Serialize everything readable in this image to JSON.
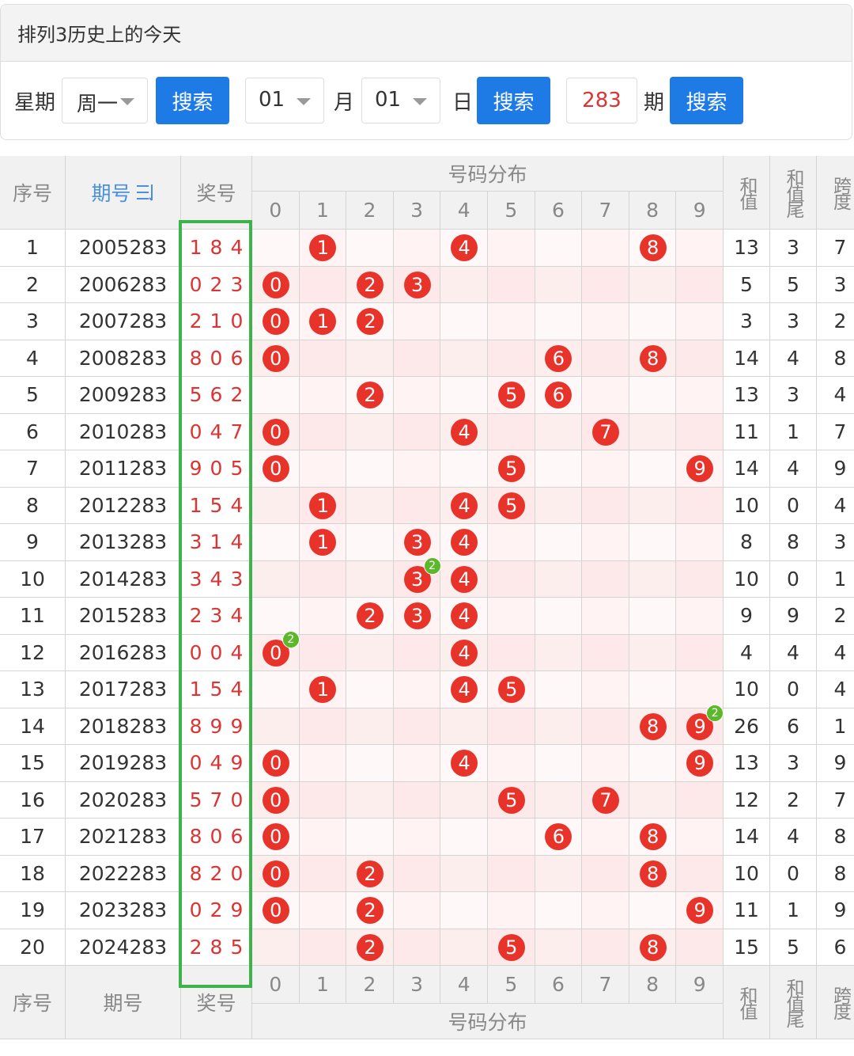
{
  "header": {
    "title": "排列3历史上的今天"
  },
  "search": {
    "weekday_label": "星期",
    "weekday": "周一",
    "search_weekday": "搜索",
    "month": "01",
    "month_label": "月",
    "day": "01",
    "day_label": "日",
    "search_date": "搜索",
    "period": "283",
    "period_label": "期",
    "search_period": "搜索"
  },
  "table": {
    "columns": {
      "index": "序号",
      "period": "期号",
      "draw": "奖号",
      "distribution": "号码分布",
      "digits": [
        0,
        1,
        2,
        3,
        4,
        5,
        6,
        7,
        8,
        9
      ],
      "sum": "和值",
      "sum_tail": "和值尾",
      "span": "跨度"
    },
    "rows": [
      {
        "index": 1,
        "period": "2005283",
        "draw": [
          1,
          8,
          4
        ],
        "sum": 13,
        "sum_tail": 3,
        "span": 7
      },
      {
        "index": 2,
        "period": "2006283",
        "draw": [
          0,
          2,
          3
        ],
        "sum": 5,
        "sum_tail": 5,
        "span": 3
      },
      {
        "index": 3,
        "period": "2007283",
        "draw": [
          2,
          1,
          0
        ],
        "sum": 3,
        "sum_tail": 3,
        "span": 2
      },
      {
        "index": 4,
        "period": "2008283",
        "draw": [
          8,
          0,
          6
        ],
        "sum": 14,
        "sum_tail": 4,
        "span": 8
      },
      {
        "index": 5,
        "period": "2009283",
        "draw": [
          5,
          6,
          2
        ],
        "sum": 13,
        "sum_tail": 3,
        "span": 4
      },
      {
        "index": 6,
        "period": "2010283",
        "draw": [
          0,
          4,
          7
        ],
        "sum": 11,
        "sum_tail": 1,
        "span": 7
      },
      {
        "index": 7,
        "period": "2011283",
        "draw": [
          9,
          0,
          5
        ],
        "sum": 14,
        "sum_tail": 4,
        "span": 9
      },
      {
        "index": 8,
        "period": "2012283",
        "draw": [
          1,
          5,
          4
        ],
        "sum": 10,
        "sum_tail": 0,
        "span": 4
      },
      {
        "index": 9,
        "period": "2013283",
        "draw": [
          3,
          1,
          4
        ],
        "sum": 8,
        "sum_tail": 8,
        "span": 3
      },
      {
        "index": 10,
        "period": "2014283",
        "draw": [
          3,
          4,
          3
        ],
        "repeat": 2,
        "sum": 10,
        "sum_tail": 0,
        "span": 1
      },
      {
        "index": 11,
        "period": "2015283",
        "draw": [
          2,
          3,
          4
        ],
        "sum": 9,
        "sum_tail": 9,
        "span": 2
      },
      {
        "index": 12,
        "period": "2016283",
        "draw": [
          0,
          0,
          4
        ],
        "repeat": 2,
        "sum": 4,
        "sum_tail": 4,
        "span": 4
      },
      {
        "index": 13,
        "period": "2017283",
        "draw": [
          1,
          5,
          4
        ],
        "sum": 10,
        "sum_tail": 0,
        "span": 4
      },
      {
        "index": 14,
        "period": "2018283",
        "draw": [
          8,
          9,
          9
        ],
        "repeat": 2,
        "sum": 26,
        "sum_tail": 6,
        "span": 1
      },
      {
        "index": 15,
        "period": "2019283",
        "draw": [
          0,
          4,
          9
        ],
        "sum": 13,
        "sum_tail": 3,
        "span": 9
      },
      {
        "index": 16,
        "period": "2020283",
        "draw": [
          5,
          7,
          0
        ],
        "sum": 12,
        "sum_tail": 2,
        "span": 7
      },
      {
        "index": 17,
        "period": "2021283",
        "draw": [
          8,
          0,
          6
        ],
        "sum": 14,
        "sum_tail": 4,
        "span": 8
      },
      {
        "index": 18,
        "period": "2022283",
        "draw": [
          8,
          2,
          0
        ],
        "sum": 10,
        "sum_tail": 0,
        "span": 8
      },
      {
        "index": 19,
        "period": "2023283",
        "draw": [
          0,
          2,
          9
        ],
        "sum": 11,
        "sum_tail": 1,
        "span": 9
      },
      {
        "index": 20,
        "period": "2024283",
        "draw": [
          2,
          8,
          5
        ],
        "sum": 15,
        "sum_tail": 5,
        "span": 6
      }
    ]
  }
}
